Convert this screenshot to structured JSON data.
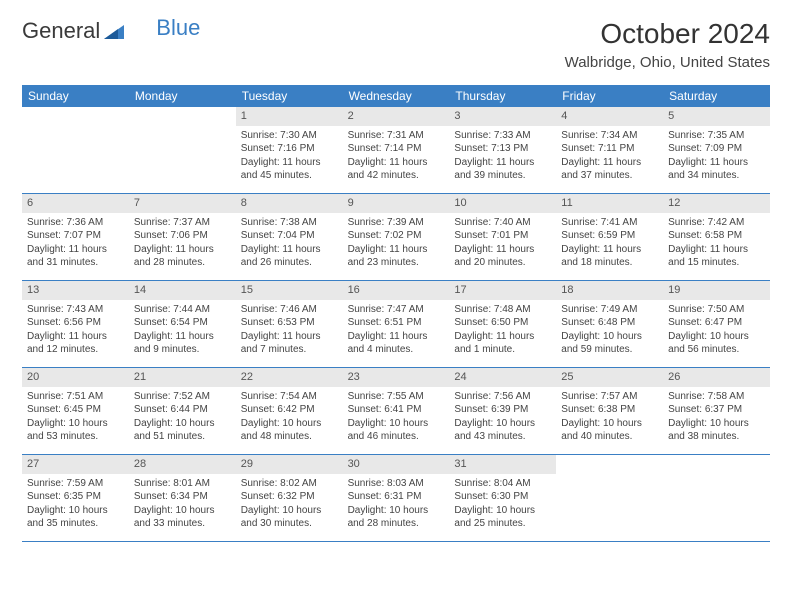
{
  "brand": {
    "part1": "General",
    "part2": "Blue"
  },
  "title": "October 2024",
  "location": "Walbridge, Ohio, United States",
  "colors": {
    "header_bg": "#3a7fc4",
    "header_text": "#ffffff",
    "daynum_bg": "#e8e8e8",
    "border": "#3a7fc4",
    "text": "#444444"
  },
  "weekdays": [
    "Sunday",
    "Monday",
    "Tuesday",
    "Wednesday",
    "Thursday",
    "Friday",
    "Saturday"
  ],
  "weeks": [
    [
      null,
      null,
      {
        "n": "1",
        "sr": "7:30 AM",
        "ss": "7:16 PM",
        "dl": "11 hours and 45 minutes."
      },
      {
        "n": "2",
        "sr": "7:31 AM",
        "ss": "7:14 PM",
        "dl": "11 hours and 42 minutes."
      },
      {
        "n": "3",
        "sr": "7:33 AM",
        "ss": "7:13 PM",
        "dl": "11 hours and 39 minutes."
      },
      {
        "n": "4",
        "sr": "7:34 AM",
        "ss": "7:11 PM",
        "dl": "11 hours and 37 minutes."
      },
      {
        "n": "5",
        "sr": "7:35 AM",
        "ss": "7:09 PM",
        "dl": "11 hours and 34 minutes."
      }
    ],
    [
      {
        "n": "6",
        "sr": "7:36 AM",
        "ss": "7:07 PM",
        "dl": "11 hours and 31 minutes."
      },
      {
        "n": "7",
        "sr": "7:37 AM",
        "ss": "7:06 PM",
        "dl": "11 hours and 28 minutes."
      },
      {
        "n": "8",
        "sr": "7:38 AM",
        "ss": "7:04 PM",
        "dl": "11 hours and 26 minutes."
      },
      {
        "n": "9",
        "sr": "7:39 AM",
        "ss": "7:02 PM",
        "dl": "11 hours and 23 minutes."
      },
      {
        "n": "10",
        "sr": "7:40 AM",
        "ss": "7:01 PM",
        "dl": "11 hours and 20 minutes."
      },
      {
        "n": "11",
        "sr": "7:41 AM",
        "ss": "6:59 PM",
        "dl": "11 hours and 18 minutes."
      },
      {
        "n": "12",
        "sr": "7:42 AM",
        "ss": "6:58 PM",
        "dl": "11 hours and 15 minutes."
      }
    ],
    [
      {
        "n": "13",
        "sr": "7:43 AM",
        "ss": "6:56 PM",
        "dl": "11 hours and 12 minutes."
      },
      {
        "n": "14",
        "sr": "7:44 AM",
        "ss": "6:54 PM",
        "dl": "11 hours and 9 minutes."
      },
      {
        "n": "15",
        "sr": "7:46 AM",
        "ss": "6:53 PM",
        "dl": "11 hours and 7 minutes."
      },
      {
        "n": "16",
        "sr": "7:47 AM",
        "ss": "6:51 PM",
        "dl": "11 hours and 4 minutes."
      },
      {
        "n": "17",
        "sr": "7:48 AM",
        "ss": "6:50 PM",
        "dl": "11 hours and 1 minute."
      },
      {
        "n": "18",
        "sr": "7:49 AM",
        "ss": "6:48 PM",
        "dl": "10 hours and 59 minutes."
      },
      {
        "n": "19",
        "sr": "7:50 AM",
        "ss": "6:47 PM",
        "dl": "10 hours and 56 minutes."
      }
    ],
    [
      {
        "n": "20",
        "sr": "7:51 AM",
        "ss": "6:45 PM",
        "dl": "10 hours and 53 minutes."
      },
      {
        "n": "21",
        "sr": "7:52 AM",
        "ss": "6:44 PM",
        "dl": "10 hours and 51 minutes."
      },
      {
        "n": "22",
        "sr": "7:54 AM",
        "ss": "6:42 PM",
        "dl": "10 hours and 48 minutes."
      },
      {
        "n": "23",
        "sr": "7:55 AM",
        "ss": "6:41 PM",
        "dl": "10 hours and 46 minutes."
      },
      {
        "n": "24",
        "sr": "7:56 AM",
        "ss": "6:39 PM",
        "dl": "10 hours and 43 minutes."
      },
      {
        "n": "25",
        "sr": "7:57 AM",
        "ss": "6:38 PM",
        "dl": "10 hours and 40 minutes."
      },
      {
        "n": "26",
        "sr": "7:58 AM",
        "ss": "6:37 PM",
        "dl": "10 hours and 38 minutes."
      }
    ],
    [
      {
        "n": "27",
        "sr": "7:59 AM",
        "ss": "6:35 PM",
        "dl": "10 hours and 35 minutes."
      },
      {
        "n": "28",
        "sr": "8:01 AM",
        "ss": "6:34 PM",
        "dl": "10 hours and 33 minutes."
      },
      {
        "n": "29",
        "sr": "8:02 AM",
        "ss": "6:32 PM",
        "dl": "10 hours and 30 minutes."
      },
      {
        "n": "30",
        "sr": "8:03 AM",
        "ss": "6:31 PM",
        "dl": "10 hours and 28 minutes."
      },
      {
        "n": "31",
        "sr": "8:04 AM",
        "ss": "6:30 PM",
        "dl": "10 hours and 25 minutes."
      },
      null,
      null
    ]
  ],
  "labels": {
    "sunrise": "Sunrise:",
    "sunset": "Sunset:",
    "daylight": "Daylight:"
  }
}
